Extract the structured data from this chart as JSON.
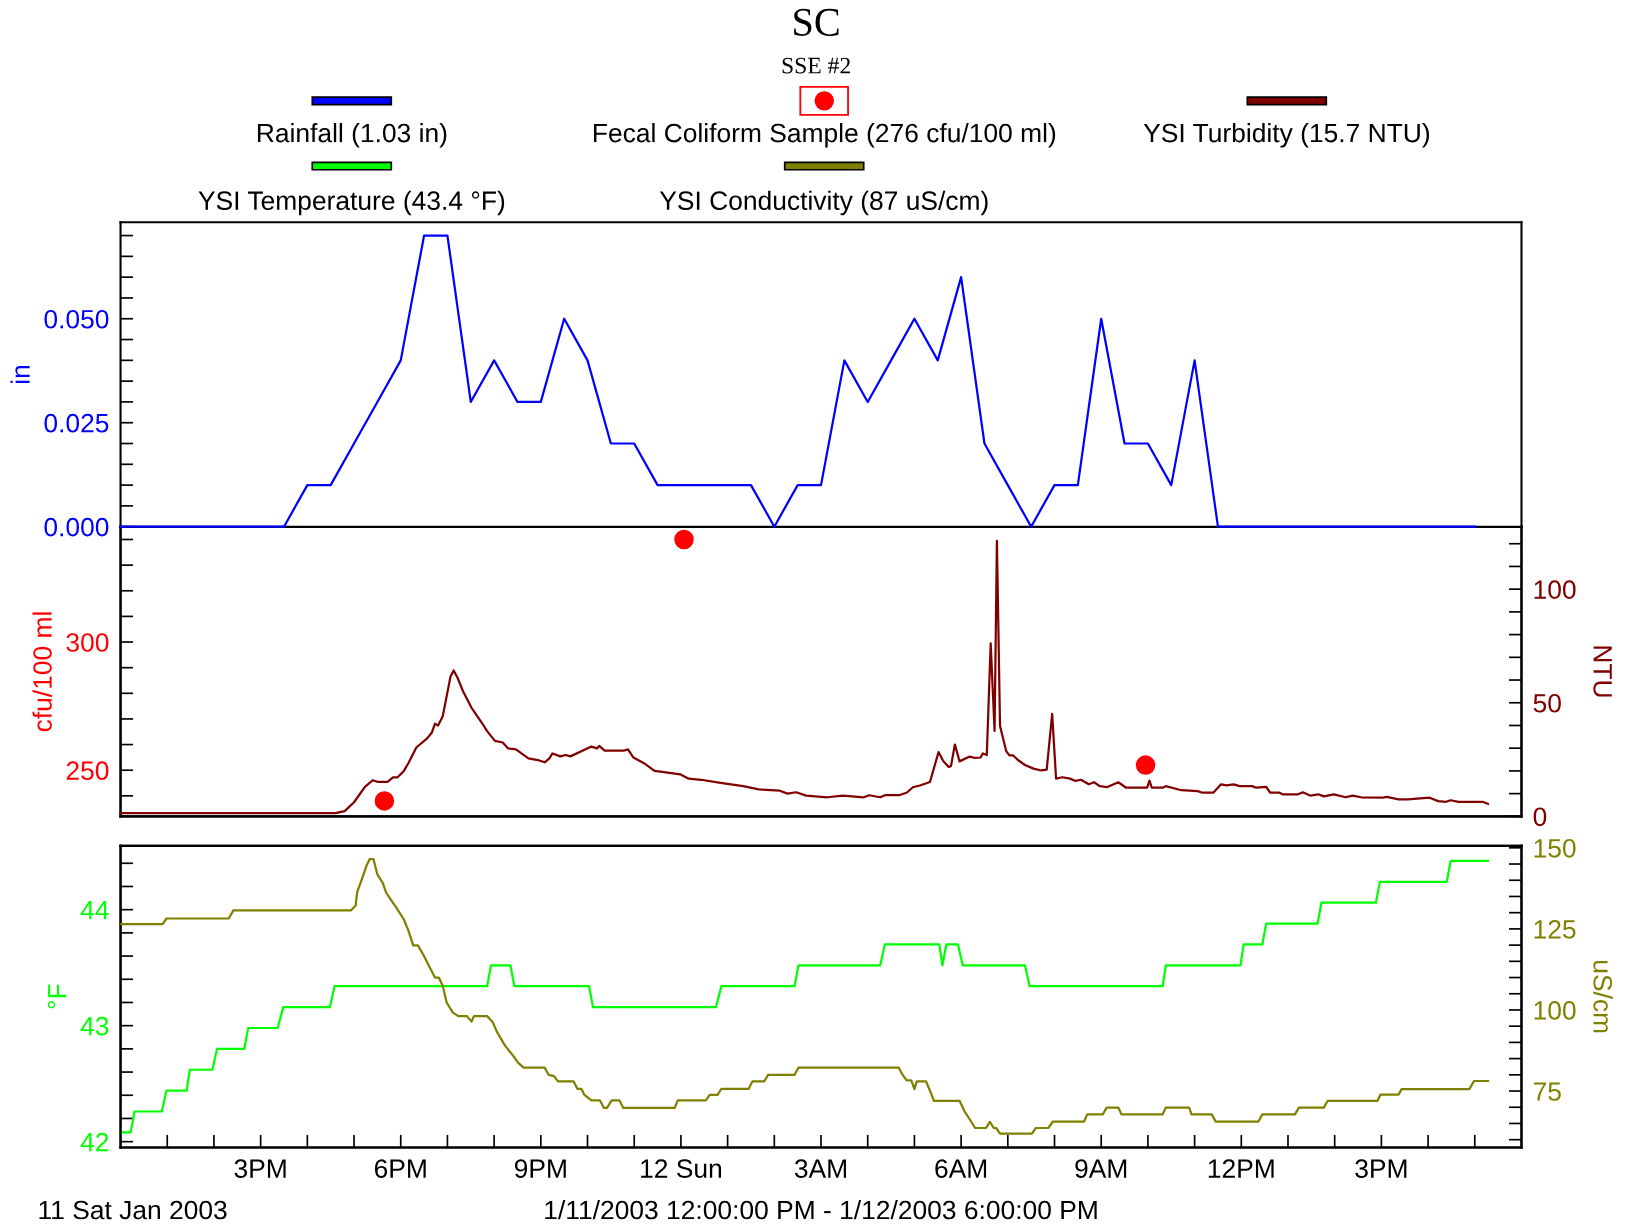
{
  "chart_data": [
    {
      "type": "line",
      "title": "SC",
      "subtitle": "SSE #2",
      "ylabel": "in",
      "legend": "top",
      "tick_labels": "y",
      "xlim": [
        "2003-01-11T12:00",
        "2003-01-12T18:00"
      ],
      "ylim": [
        0,
        0.0732
      ],
      "yticks": [
        {
          "value": 0,
          "label": "0.000"
        },
        {
          "value": 0.005,
          "label": null
        },
        {
          "value": 0.01,
          "label": null
        },
        {
          "value": 0.015,
          "label": null
        },
        {
          "value": 0.02,
          "label": null
        },
        {
          "value": 0.025,
          "label": "0.025"
        },
        {
          "value": 0.03,
          "label": null
        },
        {
          "value": 0.035,
          "label": null
        },
        {
          "value": 0.04,
          "label": null
        },
        {
          "value": 0.045,
          "label": null
        },
        {
          "value": 0.05,
          "label": "0.050"
        },
        {
          "value": 0.055,
          "label": null
        },
        {
          "value": 0.06,
          "label": null
        },
        {
          "value": 0.065,
          "label": null
        },
        {
          "value": 0.07,
          "label": null
        }
      ],
      "series": [
        {
          "name": "Rainfall (1.03 in)",
          "color": "#0000ff",
          "x": [
            "2003-01-11T12:00",
            "2003-01-11T15:30",
            "2003-01-11T16:00",
            "2003-01-11T16:30",
            "2003-01-11T17:00",
            "2003-01-11T17:30",
            "2003-01-11T18:00",
            "2003-01-11T18:30",
            "2003-01-11T19:00",
            "2003-01-11T19:30",
            "2003-01-11T20:00",
            "2003-01-11T20:30",
            "2003-01-11T21:00",
            "2003-01-11T21:30",
            "2003-01-11T22:00",
            "2003-01-11T22:30",
            "2003-01-11T23:00",
            "2003-01-11T23:30",
            "2003-01-12T01:30",
            "2003-01-12T02:00",
            "2003-01-12T02:30",
            "2003-01-12T03:00",
            "2003-01-12T03:30",
            "2003-01-12T04:00",
            "2003-01-12T04:30",
            "2003-01-12T05:00",
            "2003-01-12T05:30",
            "2003-01-12T06:00",
            "2003-01-12T06:30",
            "2003-01-12T07:00",
            "2003-01-12T07:30",
            "2003-01-12T08:00",
            "2003-01-12T08:30",
            "2003-01-12T09:00",
            "2003-01-12T09:30",
            "2003-01-12T10:00",
            "2003-01-12T10:30",
            "2003-01-12T11:00",
            "2003-01-12T11:30",
            "2003-01-12T17:00"
          ],
          "values": [
            0,
            0,
            0.01,
            0.01,
            0.02,
            0.03,
            0.04,
            0.07,
            0.07,
            0.03,
            0.04,
            0.03,
            0.03,
            0.05,
            0.04,
            0.02,
            0.02,
            0.01,
            0.01,
            0,
            0.01,
            0.01,
            0.04,
            0.03,
            0.04,
            0.05,
            0.04,
            0.06,
            0.02,
            0.01,
            0,
            0.01,
            0.01,
            0.05,
            0.02,
            0.02,
            0.01,
            0.04,
            0,
            0
          ]
        }
      ]
    },
    {
      "type": "line",
      "ylabel": "cfu/100 ml",
      "y2label": "NTU",
      "legend": "top",
      "tick_labels": "y",
      "xlim": [
        "2003-01-11T12:00",
        "2003-01-12T18:00"
      ],
      "ylim": [
        232,
        345
      ],
      "yticks": [
        {
          "value": 240,
          "label": null
        },
        250,
        {
          "value": 260,
          "label": null
        },
        {
          "value": 270,
          "label": null
        },
        {
          "value": 280,
          "label": null
        },
        {
          "value": 290,
          "label": null
        },
        300,
        {
          "value": 310,
          "label": null
        },
        {
          "value": 320,
          "label": null
        },
        {
          "value": 330,
          "label": null
        },
        {
          "value": 340,
          "label": null
        }
      ],
      "y2lim": [
        0,
        127.5
      ],
      "y2ticks": [
        0,
        {
          "value": 10,
          "label": null
        },
        {
          "value": 20,
          "label": null
        },
        {
          "value": 30,
          "label": null
        },
        {
          "value": 40,
          "label": null
        },
        50,
        {
          "value": 60,
          "label": null
        },
        {
          "value": 70,
          "label": null
        },
        {
          "value": 80,
          "label": null
        },
        {
          "value": 90,
          "label": null
        },
        100,
        {
          "value": 110,
          "label": null
        },
        {
          "value": 120,
          "label": null
        }
      ],
      "series": [
        {
          "name": "Fecal Coliform Sample (276 cfu/100 ml)",
          "type": "scatter",
          "marker": "circle",
          "color": "#ff0000",
          "x": [
            "2003-01-11T17:39",
            "2003-01-12T00:04",
            "2003-01-12T09:57"
          ],
          "values": [
            238,
            340,
            252
          ]
        },
        {
          "name": "YSI Turbidity (15.7 NTU)",
          "axis": "y2",
          "color": "#800000",
          "x": [
            "2003-01-11T12:00",
            "2003-01-11T16:36",
            "2003-01-11T16:48",
            "2003-01-11T17:00",
            "2003-01-11T17:14",
            "2003-01-11T17:24",
            "2003-01-11T17:30",
            "2003-01-11T17:43",
            "2003-01-11T17:50",
            "2003-01-11T17:56",
            "2003-01-11T18:04",
            "2003-01-11T18:10",
            "2003-01-11T18:20",
            "2003-01-11T18:34",
            "2003-01-11T18:40",
            "2003-01-11T18:44",
            "2003-01-11T18:48",
            "2003-01-11T18:54",
            "2003-01-11T19:04",
            "2003-01-11T19:08",
            "2003-01-11T19:13",
            "2003-01-11T19:20",
            "2003-01-11T19:31",
            "2003-01-11T19:44",
            "2003-01-11T19:51",
            "2003-01-11T20:01",
            "2003-01-11T20:11",
            "2003-01-11T20:18",
            "2003-01-11T20:28",
            "2003-01-11T20:44",
            "2003-01-11T20:58",
            "2003-01-11T21:05",
            "2003-01-11T21:11",
            "2003-01-11T21:15",
            "2003-01-11T21:25",
            "2003-01-11T21:32",
            "2003-01-11T21:38",
            "2003-01-11T22:05",
            "2003-01-11T22:12",
            "2003-01-11T22:15",
            "2003-01-11T22:22",
            "2003-01-11T22:46",
            "2003-01-11T22:52",
            "2003-01-11T22:59",
            "2003-01-11T23:13",
            "2003-01-11T23:26",
            "2003-01-11T23:36",
            "2003-01-11T23:59",
            "2003-01-12T00:10",
            "2003-01-12T00:26",
            "2003-01-12T00:53",
            "2003-01-12T01:20",
            "2003-01-12T01:40",
            "2003-01-12T02:07",
            "2003-01-12T02:17",
            "2003-01-12T02:28",
            "2003-01-12T02:41",
            "2003-01-12T03:08",
            "2003-01-12T03:28",
            "2003-01-12T03:55",
            "2003-01-12T04:02",
            "2003-01-12T04:16",
            "2003-01-12T04:22",
            "2003-01-12T04:40",
            "2003-01-12T04:50",
            "2003-01-12T04:58",
            "2003-01-12T05:07",
            "2003-01-12T05:20",
            "2003-01-12T05:31",
            "2003-01-12T05:37",
            "2003-01-12T05:44",
            "2003-01-12T05:47",
            "2003-01-12T05:52",
            "2003-01-12T05:58",
            "2003-01-12T06:11",
            "2003-01-12T06:18",
            "2003-01-12T06:25",
            "2003-01-12T06:28",
            "2003-01-12T06:33",
            "2003-01-12T06:38",
            "2003-01-12T06:43",
            "2003-01-12T06:46",
            "2003-01-12T06:50",
            "2003-01-12T06:58",
            "2003-01-12T07:02",
            "2003-01-12T07:07",
            "2003-01-12T07:13",
            "2003-01-12T07:22",
            "2003-01-12T07:33",
            "2003-01-12T07:43",
            "2003-01-12T07:50",
            "2003-01-12T07:57",
            "2003-01-12T08:02",
            "2003-01-12T08:10",
            "2003-01-12T08:20",
            "2003-01-12T08:27",
            "2003-01-12T08:34",
            "2003-01-12T08:44",
            "2003-01-12T08:51",
            "2003-01-12T08:58",
            "2003-01-12T09:08",
            "2003-01-12T09:22",
            "2003-01-12T09:32",
            "2003-01-12T09:59",
            "2003-01-12T10:02",
            "2003-01-12T10:05",
            "2003-01-12T10:19",
            "2003-01-12T10:23",
            "2003-01-12T10:43",
            "2003-01-12T11:04",
            "2003-01-12T11:10",
            "2003-01-12T11:24",
            "2003-01-12T11:34",
            "2003-01-12T11:41",
            "2003-01-12T11:50",
            "2003-01-12T11:58",
            "2003-01-12T12:14",
            "2003-01-12T12:19",
            "2003-01-12T12:32",
            "2003-01-12T12:37",
            "2003-01-12T12:49",
            "2003-01-12T12:53",
            "2003-01-12T13:13",
            "2003-01-12T13:19",
            "2003-01-12T13:29",
            "2003-01-12T13:39",
            "2003-01-12T13:46",
            "2003-01-12T13:59",
            "2003-01-12T14:14",
            "2003-01-12T14:23",
            "2003-01-12T14:34",
            "2003-01-12T15:01",
            "2003-01-12T15:07",
            "2003-01-12T15:22",
            "2003-01-12T15:34",
            "2003-01-12T16:02",
            "2003-01-12T16:13",
            "2003-01-12T16:23",
            "2003-01-12T16:29",
            "2003-01-12T16:39",
            "2003-01-12T17:10",
            "2003-01-12T17:17"
          ],
          "values": [
            1.4,
            1.4,
            2.3,
            6.2,
            13.0,
            15.9,
            15.2,
            15.2,
            17.2,
            17.2,
            20.0,
            23.5,
            30.3,
            34.3,
            36.9,
            40.8,
            40.0,
            44.1,
            61.6,
            64.2,
            61.0,
            55.1,
            47.8,
            41.3,
            37.5,
            33.2,
            32.5,
            29.9,
            29.5,
            25.5,
            24.6,
            23.8,
            25.5,
            27.7,
            26.4,
            27.0,
            26.4,
            30.7,
            29.9,
            31.0,
            28.9,
            28.9,
            29.5,
            25.9,
            23.3,
            20.0,
            19.6,
            18.5,
            16.6,
            16.1,
            14.6,
            13.3,
            11.9,
            11.3,
            10.0,
            10.6,
            9.1,
            8.4,
            9.1,
            8.4,
            9.3,
            8.4,
            9.3,
            9.3,
            10.4,
            12.8,
            13.6,
            15.1,
            28.3,
            24.4,
            21.7,
            22.1,
            31.6,
            24.2,
            26.3,
            25.7,
            25.9,
            27.7,
            27.0,
            76.1,
            37.6,
            121.3,
            39.8,
            28.7,
            26.8,
            26.8,
            24.8,
            22.6,
            21.0,
            20.2,
            20.6,
            45.1,
            16.6,
            17.2,
            16.6,
            15.6,
            16.1,
            14.1,
            15.0,
            13.3,
            12.9,
            15.0,
            12.6,
            12.6,
            15.7,
            12.6,
            12.6,
            13.3,
            11.5,
            11.1,
            10.4,
            10.4,
            14.1,
            13.6,
            14.1,
            13.3,
            13.3,
            12.6,
            13.0,
            10.4,
            10.4,
            9.7,
            9.7,
            10.6,
            9.1,
            9.7,
            8.8,
            9.7,
            8.4,
            9.1,
            8.4,
            8.2,
            8.6,
            7.5,
            7.5,
            8.2,
            6.7,
            6.4,
            7.1,
            6.4,
            6.4,
            5.5
          ]
        }
      ]
    },
    {
      "type": "line",
      "ylabel": "°F",
      "y2label": "uS/cm",
      "legend": "top",
      "xlim": [
        "2003-01-11T12:00",
        "2003-01-12T18:00"
      ],
      "xticks": [
        {
          "value": "2003-01-11T13:00",
          "label": null
        },
        {
          "value": "2003-01-11T14:00",
          "label": null
        },
        {
          "value": "2003-01-11T15:00",
          "label": "3PM"
        },
        {
          "value": "2003-01-11T16:00",
          "label": null
        },
        {
          "value": "2003-01-11T17:00",
          "label": null
        },
        {
          "value": "2003-01-11T18:00",
          "label": "6PM"
        },
        {
          "value": "2003-01-11T19:00",
          "label": null
        },
        {
          "value": "2003-01-11T20:00",
          "label": null
        },
        {
          "value": "2003-01-11T21:00",
          "label": "9PM"
        },
        {
          "value": "2003-01-11T22:00",
          "label": null
        },
        {
          "value": "2003-01-11T23:00",
          "label": null
        },
        {
          "value": "2003-01-12T00:00",
          "label": "12 Sun"
        },
        {
          "value": "2003-01-12T01:00",
          "label": null
        },
        {
          "value": "2003-01-12T02:00",
          "label": null
        },
        {
          "value": "2003-01-12T03:00",
          "label": "3AM"
        },
        {
          "value": "2003-01-12T04:00",
          "label": null
        },
        {
          "value": "2003-01-12T05:00",
          "label": null
        },
        {
          "value": "2003-01-12T06:00",
          "label": "6AM"
        },
        {
          "value": "2003-01-12T07:00",
          "label": null
        },
        {
          "value": "2003-01-12T08:00",
          "label": null
        },
        {
          "value": "2003-01-12T09:00",
          "label": "9AM"
        },
        {
          "value": "2003-01-12T10:00",
          "label": null
        },
        {
          "value": "2003-01-12T11:00",
          "label": null
        },
        {
          "value": "2003-01-12T12:00",
          "label": "12PM"
        },
        {
          "value": "2003-01-12T13:00",
          "label": null
        },
        {
          "value": "2003-01-12T14:00",
          "label": null
        },
        {
          "value": "2003-01-12T15:00",
          "label": "3PM"
        },
        {
          "value": "2003-01-12T16:00",
          "label": null
        },
        {
          "value": "2003-01-12T17:00",
          "label": null
        }
      ],
      "ylim": [
        41.95,
        44.55
      ],
      "yticks": [
        42,
        {
          "value": 42.2,
          "label": null
        },
        {
          "value": 42.4,
          "label": null
        },
        {
          "value": 42.6,
          "label": null
        },
        {
          "value": 42.8,
          "label": null
        },
        43,
        {
          "value": 43.2,
          "label": null
        },
        {
          "value": 43.4,
          "label": null
        },
        {
          "value": 43.6,
          "label": null
        },
        {
          "value": 43.8,
          "label": null
        },
        44,
        {
          "value": 44.2,
          "label": null
        },
        {
          "value": 44.4,
          "label": null
        }
      ],
      "y2lim": [
        57.6,
        150.6
      ],
      "y2ticks": [
        {
          "value": 60,
          "label": null
        },
        {
          "value": 65,
          "label": null
        },
        {
          "value": 70,
          "label": null
        },
        75,
        {
          "value": 80,
          "label": null
        },
        {
          "value": 85,
          "label": null
        },
        {
          "value": 90,
          "label": null
        },
        {
          "value": 95,
          "label": null
        },
        100,
        {
          "value": 105,
          "label": null
        },
        {
          "value": 110,
          "label": null
        },
        {
          "value": 115,
          "label": null
        },
        {
          "value": 120,
          "label": null
        },
        125,
        {
          "value": 130,
          "label": null
        },
        {
          "value": 135,
          "label": null
        },
        {
          "value": 140,
          "label": null
        },
        {
          "value": 145,
          "label": null
        },
        150
      ],
      "annotations": [
        "11 Sat Jan 2003",
        "1/11/2003 12:00:00 PM - 1/12/2003 6:00:00 PM"
      ],
      "series": [
        {
          "name": "YSI Temperature (43.4 °F)",
          "color": "#00ff00",
          "x": [
            "2003-01-11T12:01",
            "2003-01-11T12:13",
            "2003-01-11T12:18",
            "2003-01-11T12:53",
            "2003-01-11T12:59",
            "2003-01-11T13:25",
            "2003-01-11T13:29",
            "2003-01-11T13:58",
            "2003-01-11T14:04",
            "2003-01-11T14:39",
            "2003-01-11T14:44",
            "2003-01-11T15:22",
            "2003-01-11T15:29",
            "2003-01-11T16:29",
            "2003-01-11T16:35",
            "2003-01-11T19:51",
            "2003-01-11T19:56",
            "2003-01-11T20:21",
            "2003-01-11T20:26",
            "2003-01-11T22:02",
            "2003-01-11T22:07",
            "2003-01-12T00:45",
            "2003-01-12T00:52",
            "2003-01-12T02:26",
            "2003-01-12T02:31",
            "2003-01-12T04:16",
            "2003-01-12T04:22",
            "2003-01-12T05:32",
            "2003-01-12T05:36",
            "2003-01-12T05:41",
            "2003-01-12T05:56",
            "2003-01-12T06:02",
            "2003-01-12T07:22",
            "2003-01-12T07:28",
            "2003-01-12T10:19",
            "2003-01-12T10:23",
            "2003-01-12T11:59",
            "2003-01-12T12:03",
            "2003-01-12T12:27",
            "2003-01-12T12:32",
            "2003-01-12T13:38",
            "2003-01-12T13:43",
            "2003-01-12T14:53",
            "2003-01-12T14:58",
            "2003-01-12T16:24",
            "2003-01-12T16:29",
            "2003-01-12T17:17"
          ],
          "values": [
            42.08,
            42.08,
            42.26,
            42.26,
            42.44,
            42.44,
            42.62,
            42.62,
            42.8,
            42.8,
            42.98,
            42.98,
            43.16,
            43.16,
            43.34,
            43.34,
            43.52,
            43.52,
            43.34,
            43.34,
            43.16,
            43.16,
            43.34,
            43.34,
            43.52,
            43.52,
            43.7,
            43.7,
            43.52,
            43.7,
            43.7,
            43.52,
            43.52,
            43.34,
            43.34,
            43.52,
            43.52,
            43.7,
            43.7,
            43.88,
            43.88,
            44.06,
            44.06,
            44.24,
            44.24,
            44.42,
            44.42
          ]
        },
        {
          "name": "YSI Conductivity (87 uS/cm)",
          "axis": "y2",
          "color": "#808000",
          "x": [
            "2003-01-11T12:01",
            "2003-01-11T12:54",
            "2003-01-11T12:59",
            "2003-01-11T14:19",
            "2003-01-11T14:25",
            "2003-01-11T16:56",
            "2003-01-11T17:02",
            "2003-01-11T17:04",
            "2003-01-11T17:10",
            "2003-01-11T17:16",
            "2003-01-11T17:20",
            "2003-01-11T17:25",
            "2003-01-11T17:30",
            "2003-01-11T17:37",
            "2003-01-11T17:41",
            "2003-01-11T17:47",
            "2003-01-11T17:55",
            "2003-01-11T18:04",
            "2003-01-11T18:10",
            "2003-01-11T18:16",
            "2003-01-11T18:22",
            "2003-01-11T18:30",
            "2003-01-11T18:38",
            "2003-01-11T18:44",
            "2003-01-11T18:49",
            "2003-01-11T18:54",
            "2003-01-11T18:59",
            "2003-01-11T19:07",
            "2003-01-11T19:14",
            "2003-01-11T19:25",
            "2003-01-11T19:31",
            "2003-01-11T19:34",
            "2003-01-11T19:51",
            "2003-01-11T19:58",
            "2003-01-11T20:04",
            "2003-01-11T20:14",
            "2003-01-11T20:25",
            "2003-01-11T20:31",
            "2003-01-11T20:38",
            "2003-01-11T21:05",
            "2003-01-11T21:10",
            "2003-01-11T21:17",
            "2003-01-11T21:22",
            "2003-01-11T21:42",
            "2003-01-11T21:47",
            "2003-01-11T21:52",
            "2003-01-11T21:56",
            "2003-01-11T22:05",
            "2003-01-11T22:16",
            "2003-01-11T22:21",
            "2003-01-11T22:25",
            "2003-01-11T22:31",
            "2003-01-11T22:41",
            "2003-01-11T22:46",
            "2003-01-11T23:52",
            "2003-01-11T23:56",
            "2003-01-12T00:32",
            "2003-01-12T00:37",
            "2003-01-12T00:47",
            "2003-01-12T00:52",
            "2003-01-12T01:27",
            "2003-01-12T01:32",
            "2003-01-12T01:47",
            "2003-01-12T01:52",
            "2003-01-12T02:26",
            "2003-01-12T02:31",
            "2003-01-12T04:40",
            "2003-01-12T04:44",
            "2003-01-12T04:50",
            "2003-01-12T04:56",
            "2003-01-12T05:00",
            "2003-01-12T05:03",
            "2003-01-12T05:15",
            "2003-01-12T05:20",
            "2003-01-12T05:25",
            "2003-01-12T05:58",
            "2003-01-12T06:04",
            "2003-01-12T06:11",
            "2003-01-12T06:18",
            "2003-01-12T06:32",
            "2003-01-12T06:37",
            "2003-01-12T06:42",
            "2003-01-12T06:45",
            "2003-01-12T06:50",
            "2003-01-12T07:31",
            "2003-01-12T07:36",
            "2003-01-12T07:52",
            "2003-01-12T07:58",
            "2003-01-12T08:38",
            "2003-01-12T08:42",
            "2003-01-12T09:02",
            "2003-01-12T09:07",
            "2003-01-12T09:22",
            "2003-01-12T09:26",
            "2003-01-12T10:19",
            "2003-01-12T10:23",
            "2003-01-12T10:53",
            "2003-01-12T10:56",
            "2003-01-12T11:22",
            "2003-01-12T11:27",
            "2003-01-12T12:22",
            "2003-01-12T12:27",
            "2003-01-12T13:09",
            "2003-01-12T13:14",
            "2003-01-12T13:46",
            "2003-01-12T13:51",
            "2003-01-12T14:55",
            "2003-01-12T14:59",
            "2003-01-12T15:22",
            "2003-01-12T15:26",
            "2003-01-12T16:53",
            "2003-01-12T16:59",
            "2003-01-12T17:17"
          ],
          "values": [
            126.5,
            126.5,
            128.2,
            128.2,
            130.7,
            130.7,
            132.2,
            136.3,
            140.3,
            144.5,
            146.5,
            146.5,
            141.8,
            139.1,
            136.3,
            134.1,
            131.3,
            127.9,
            124.4,
            119.9,
            119.9,
            116.6,
            112.8,
            110.0,
            110.0,
            107.4,
            102.3,
            99.2,
            98.1,
            98.1,
            96.4,
            98.1,
            98.1,
            96.3,
            93.1,
            89.0,
            85.7,
            83.7,
            82.2,
            82.2,
            80.0,
            79.6,
            78.0,
            78.0,
            75.7,
            75.7,
            73.8,
            72.1,
            72.1,
            69.8,
            69.8,
            72.1,
            72.1,
            69.8,
            69.8,
            72.1,
            72.1,
            73.8,
            73.8,
            75.7,
            75.7,
            78.0,
            78.0,
            80.0,
            80.0,
            82.2,
            82.2,
            80.3,
            78.3,
            78.3,
            75.6,
            78.0,
            78.0,
            75.1,
            72.0,
            72.0,
            68.9,
            66.3,
            63.6,
            63.6,
            65.5,
            63.6,
            63.6,
            61.9,
            61.9,
            63.6,
            63.6,
            65.6,
            65.6,
            67.8,
            67.8,
            69.9,
            69.9,
            67.8,
            67.8,
            69.9,
            69.9,
            67.8,
            67.8,
            65.6,
            65.6,
            67.8,
            67.8,
            69.9,
            69.9,
            72.0,
            72.0,
            73.9,
            73.9,
            75.6,
            75.6,
            78.1,
            78.1
          ]
        }
      ]
    }
  ]
}
